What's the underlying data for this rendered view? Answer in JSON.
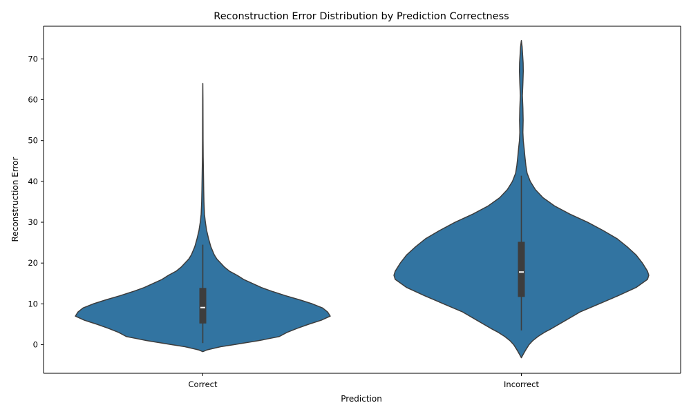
{
  "chart_data": {
    "type": "violin",
    "title": "Reconstruction Error Distribution by Prediction Correctness",
    "xlabel": "Prediction",
    "ylabel": "Reconstruction Error",
    "categories": [
      "Correct",
      "Incorrect"
    ],
    "ylim": [
      -7,
      78
    ],
    "yticks": [
      0,
      10,
      20,
      30,
      40,
      50,
      60,
      70
    ],
    "grid": false,
    "colors": {
      "violin": "#3274a1",
      "edge": "#3d3d3d",
      "box": "#3d3d3d",
      "median": "#ffffff"
    },
    "violins": [
      {
        "category": "Correct",
        "box": {
          "q1": 5.2,
          "median": 9.1,
          "q3": 13.9,
          "whisker_low": 0.4,
          "whisker_high": 24.5
        },
        "profile": [
          [
            -1.7,
            0.0
          ],
          [
            -1.3,
            0.03
          ],
          [
            -1.0,
            0.07
          ],
          [
            -0.5,
            0.14
          ],
          [
            0.0,
            0.24
          ],
          [
            0.5,
            0.34
          ],
          [
            1.0,
            0.44
          ],
          [
            1.5,
            0.52
          ],
          [
            2.0,
            0.6
          ],
          [
            3.0,
            0.66
          ],
          [
            4.0,
            0.74
          ],
          [
            5.0,
            0.83
          ],
          [
            6.0,
            0.93
          ],
          [
            7.0,
            1.0
          ],
          [
            8.0,
            0.98
          ],
          [
            9.0,
            0.94
          ],
          [
            10.0,
            0.86
          ],
          [
            11.0,
            0.76
          ],
          [
            12.0,
            0.65
          ],
          [
            13.0,
            0.55
          ],
          [
            14.0,
            0.46
          ],
          [
            15.0,
            0.39
          ],
          [
            16.0,
            0.32
          ],
          [
            17.0,
            0.27
          ],
          [
            18.0,
            0.21
          ],
          [
            19.0,
            0.17
          ],
          [
            20.0,
            0.14
          ],
          [
            21.0,
            0.11
          ],
          [
            22.0,
            0.09
          ],
          [
            24.0,
            0.063
          ],
          [
            26.0,
            0.045
          ],
          [
            28.0,
            0.03
          ],
          [
            30.0,
            0.02
          ],
          [
            32.0,
            0.013
          ],
          [
            35.0,
            0.009
          ],
          [
            38.0,
            0.007
          ],
          [
            42.0,
            0.005
          ],
          [
            46.0,
            0.003
          ],
          [
            50.0,
            0.002
          ],
          [
            55.0,
            0.0015
          ],
          [
            60.0,
            0.001
          ],
          [
            64.0,
            0.0
          ]
        ]
      },
      {
        "category": "Incorrect",
        "box": {
          "q1": 11.7,
          "median": 17.8,
          "q3": 25.2,
          "whisker_low": 3.5,
          "whisker_high": 41.4
        },
        "profile": [
          [
            -3.2,
            0.0
          ],
          [
            -2.5,
            0.012
          ],
          [
            -1.5,
            0.03
          ],
          [
            0.0,
            0.06
          ],
          [
            1.0,
            0.09
          ],
          [
            2.0,
            0.13
          ],
          [
            3.0,
            0.18
          ],
          [
            4.0,
            0.24
          ],
          [
            6.0,
            0.35
          ],
          [
            8.0,
            0.46
          ],
          [
            10.0,
            0.61
          ],
          [
            12.0,
            0.76
          ],
          [
            14.0,
            0.9
          ],
          [
            16.0,
            0.99
          ],
          [
            17.0,
            1.0
          ],
          [
            18.0,
            0.99
          ],
          [
            20.0,
            0.95
          ],
          [
            22.0,
            0.9
          ],
          [
            24.0,
            0.83
          ],
          [
            26.0,
            0.75
          ],
          [
            28.0,
            0.64
          ],
          [
            30.0,
            0.52
          ],
          [
            32.0,
            0.38
          ],
          [
            34.0,
            0.26
          ],
          [
            36.0,
            0.17
          ],
          [
            38.0,
            0.11
          ],
          [
            40.0,
            0.07
          ],
          [
            42.0,
            0.045
          ],
          [
            44.0,
            0.035
          ],
          [
            46.0,
            0.028
          ],
          [
            48.0,
            0.022
          ],
          [
            50.0,
            0.015
          ],
          [
            52.0,
            0.012
          ],
          [
            55.0,
            0.014
          ],
          [
            58.0,
            0.012
          ],
          [
            61.0,
            0.008
          ],
          [
            64.0,
            0.012
          ],
          [
            67.0,
            0.015
          ],
          [
            69.0,
            0.014
          ],
          [
            71.0,
            0.01
          ],
          [
            73.0,
            0.006
          ],
          [
            74.5,
            0.0
          ]
        ]
      }
    ]
  }
}
